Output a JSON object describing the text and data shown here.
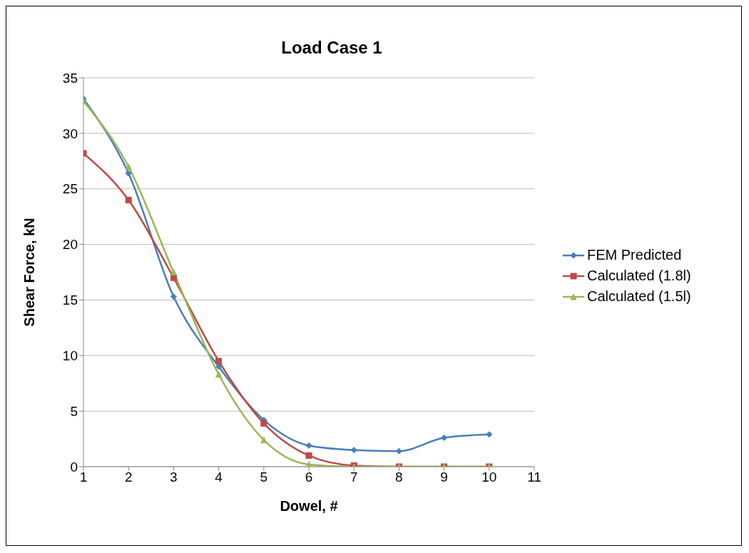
{
  "chart_data": {
    "type": "line",
    "title": "Load Case 1",
    "xlabel": "Dowel, #",
    "ylabel": "Shear Force, kN",
    "x": [
      1,
      2,
      3,
      4,
      5,
      6,
      7,
      8,
      9,
      10
    ],
    "xlim": [
      1,
      11
    ],
    "xticks": [
      1,
      2,
      3,
      4,
      5,
      6,
      7,
      8,
      9,
      10,
      11
    ],
    "ylim": [
      0,
      35
    ],
    "yticks": [
      0,
      5,
      10,
      15,
      20,
      25,
      30,
      35
    ],
    "grid": "y",
    "legend": "right",
    "series": [
      {
        "name": "FEM Predicted",
        "color": "#4a7ebb",
        "marker": "diamond",
        "values": [
          33.1,
          26.4,
          15.3,
          9.0,
          4.2,
          1.9,
          1.5,
          1.4,
          2.6,
          2.9
        ]
      },
      {
        "name": "Calculated (1.8l)",
        "color": "#be4b48",
        "marker": "square",
        "values": [
          28.2,
          24.0,
          17.0,
          9.5,
          3.9,
          1.0,
          0.1,
          0,
          0,
          0
        ]
      },
      {
        "name": "Calculated (1.5l)",
        "color": "#98b954",
        "marker": "triangle",
        "values": [
          32.9,
          27.0,
          17.5,
          8.3,
          2.4,
          0.2,
          0,
          0,
          0,
          0
        ]
      }
    ]
  }
}
